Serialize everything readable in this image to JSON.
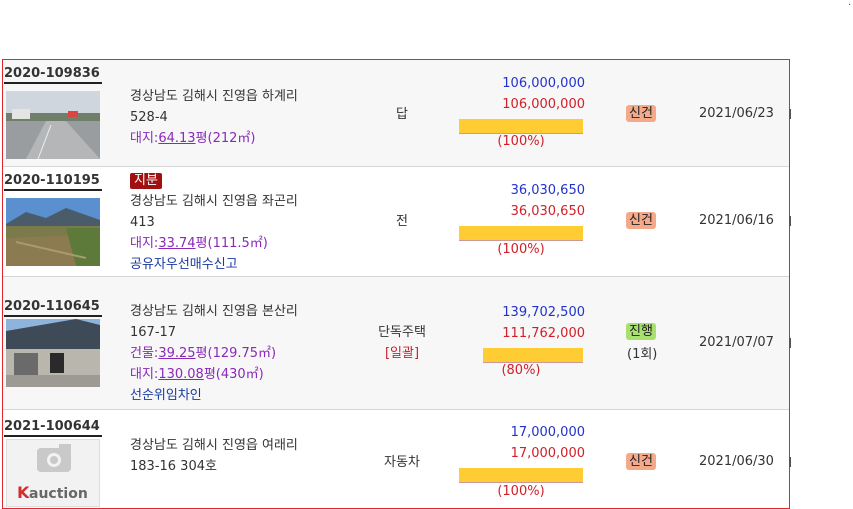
{
  "rows": [
    {
      "case_no": "2020-109836",
      "address_line1": "경상남도 김해시 진영읍 하계리",
      "address_line2": "528-4",
      "area1_prefix": "대지:",
      "area1_pyeong": "64.13",
      "area1_suffix": "평(212㎡)",
      "kind": "답",
      "appraisal": "106,000,000",
      "minimum": "106,000,000",
      "percent_label": "(100%)",
      "percent": 100,
      "status": "신건",
      "date": "2021/06/23"
    },
    {
      "case_no": "2020-110195",
      "tag": "지분",
      "address_line1": "경상남도 김해시 진영읍 좌곤리",
      "address_line2": "413",
      "area1_prefix": "대지:",
      "area1_pyeong": "33.74",
      "area1_suffix": "평(111.5㎡)",
      "note": "공유자우선매수신고",
      "kind": "전",
      "appraisal": "36,030,650",
      "minimum": "36,030,650",
      "percent_label": "(100%)",
      "percent": 100,
      "status": "신건",
      "date": "2021/06/16"
    },
    {
      "case_no": "2020-110645",
      "address_line1": "경상남도 김해시 진영읍 본산리",
      "address_line2": "167-17",
      "bldg_prefix": "건물:",
      "bldg_pyeong": "39.25",
      "bldg_suffix": "평(129.75㎡)",
      "area1_prefix": "대지:",
      "area1_pyeong": "130.08",
      "area1_suffix": "평(430㎡)",
      "note": "선순위임차인",
      "kind": "단독주택",
      "kind_sub": "[일괄]",
      "appraisal": "139,702,500",
      "minimum": "111,762,000",
      "percent_label": "(80%)",
      "percent": 80,
      "status": "진행",
      "times": "(1회)",
      "date": "2021/07/07"
    },
    {
      "case_no": "2021-100644",
      "address_line1": "경상남도 김해시 진영읍 여래리",
      "address_line2": "183-16 304호",
      "kind": "자동차",
      "appraisal": "17,000,000",
      "minimum": "17,000,000",
      "percent_label": "(100%)",
      "percent": 100,
      "status": "신건",
      "date": "2021/06/30",
      "placeholder_logo": "auction"
    }
  ],
  "colors": {
    "border": "#e0262e",
    "appraisal": "#2233cc",
    "minimum": "#d0202a",
    "bar": "#ffcc33",
    "status_new": "#f4a98a",
    "status_ing": "#a8e070",
    "share_badge": "#a01010"
  }
}
